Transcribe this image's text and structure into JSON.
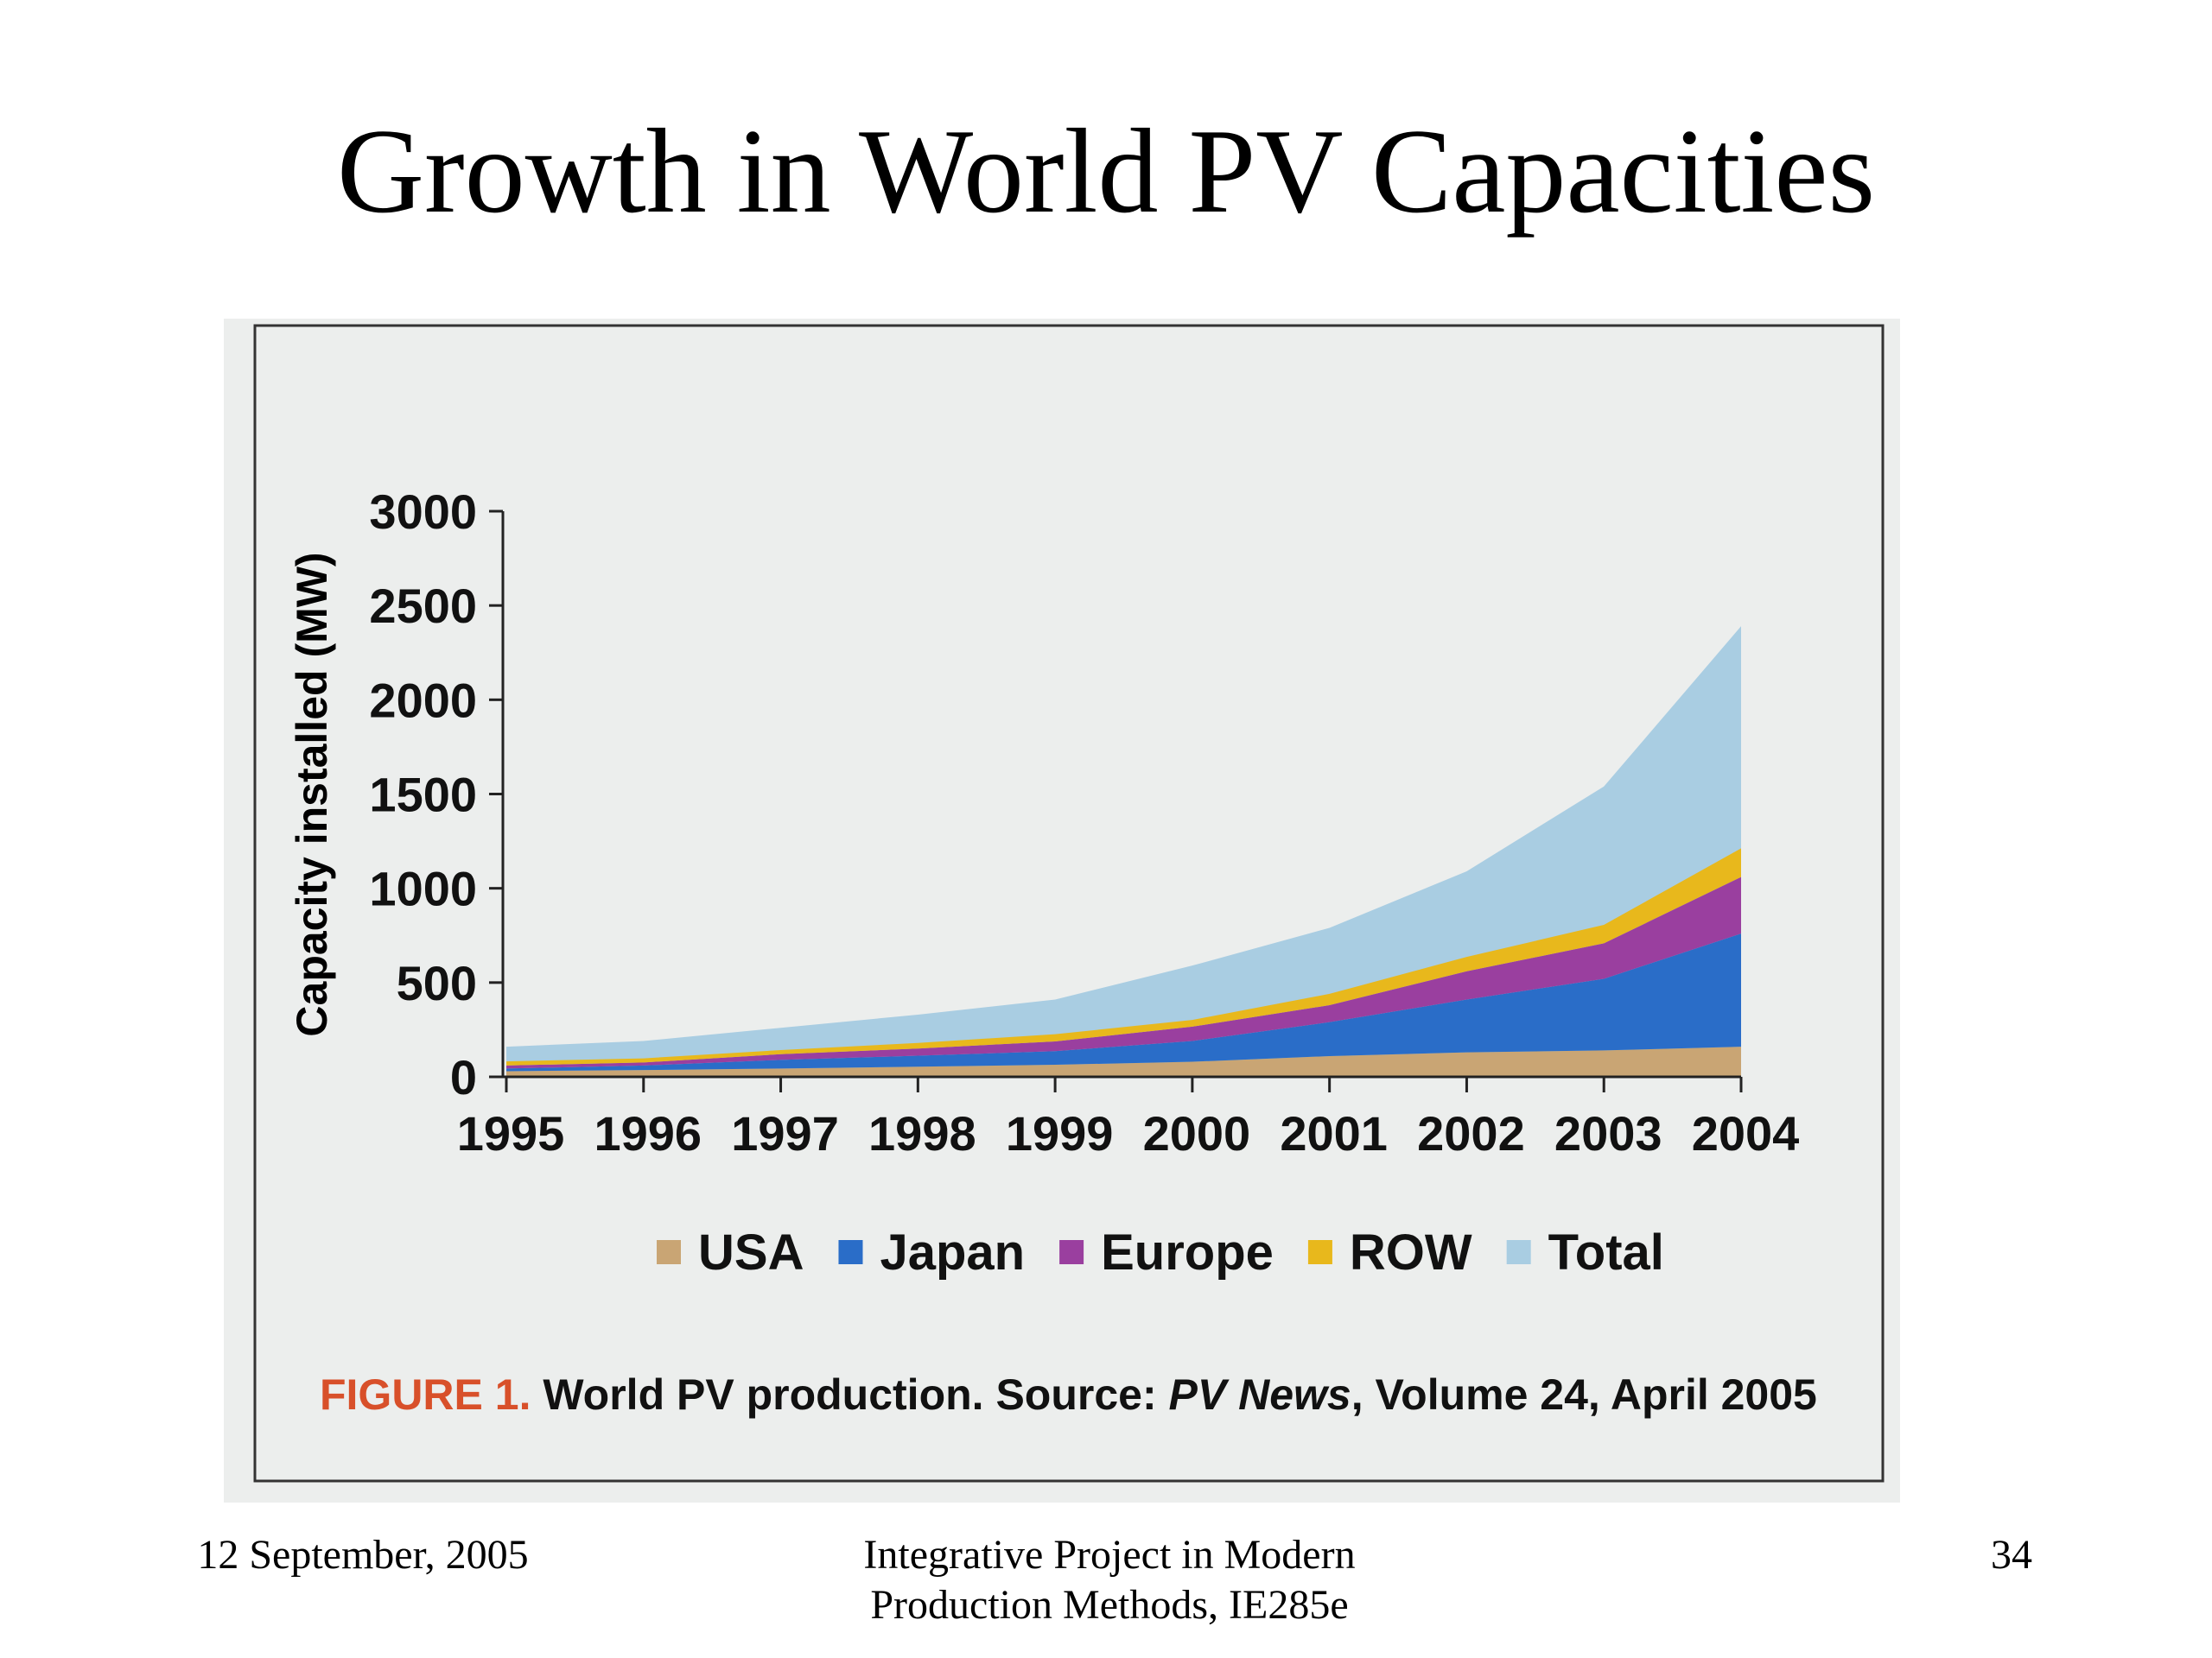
{
  "slide": {
    "title": "Growth in World PV Capacities",
    "footer": {
      "date": "12 September, 2005",
      "course": [
        "Integrative Project in Modern",
        "Production Methods, IE285e"
      ],
      "page": "34"
    }
  },
  "chart_data": {
    "type": "stacked-area",
    "y_label": "Capacity installed (MW)",
    "categories": [
      "1995",
      "1996",
      "1997",
      "1998",
      "1999",
      "2000",
      "2001",
      "2002",
      "2003",
      "2004"
    ],
    "series": [
      {
        "name": "USA",
        "color": "#c9a574",
        "values": [
          30,
          36,
          44,
          54,
          64,
          80,
          110,
          130,
          140,
          160
        ]
      },
      {
        "name": "Japan",
        "color": "#2a6dc8",
        "values": [
          14,
          24,
          46,
          58,
          72,
          110,
          180,
          280,
          380,
          600
        ]
      },
      {
        "name": "Europe",
        "color": "#9a3f9f",
        "values": [
          16,
          16,
          30,
          38,
          52,
          76,
          90,
          150,
          188,
          300
        ]
      },
      {
        "name": "ROW",
        "color": "#e8b81c",
        "values": [
          22,
          22,
          22,
          30,
          38,
          36,
          60,
          76,
          98,
          152
        ]
      },
      {
        "name": "Total",
        "color": "#a9cde2",
        "values": [
          160,
          190,
          260,
          330,
          410,
          590,
          790,
          1090,
          1540,
          2390
        ],
        "total": true
      }
    ],
    "ylim": [
      0,
      3000
    ],
    "yticks": [
      0,
      500,
      1000,
      1500,
      2000,
      2500,
      3000
    ],
    "caption": {
      "label": "FIGURE 1.",
      "text": "World PV production. Source:",
      "source": "PV News",
      "rest": ", Volume 24, April 2005"
    }
  }
}
